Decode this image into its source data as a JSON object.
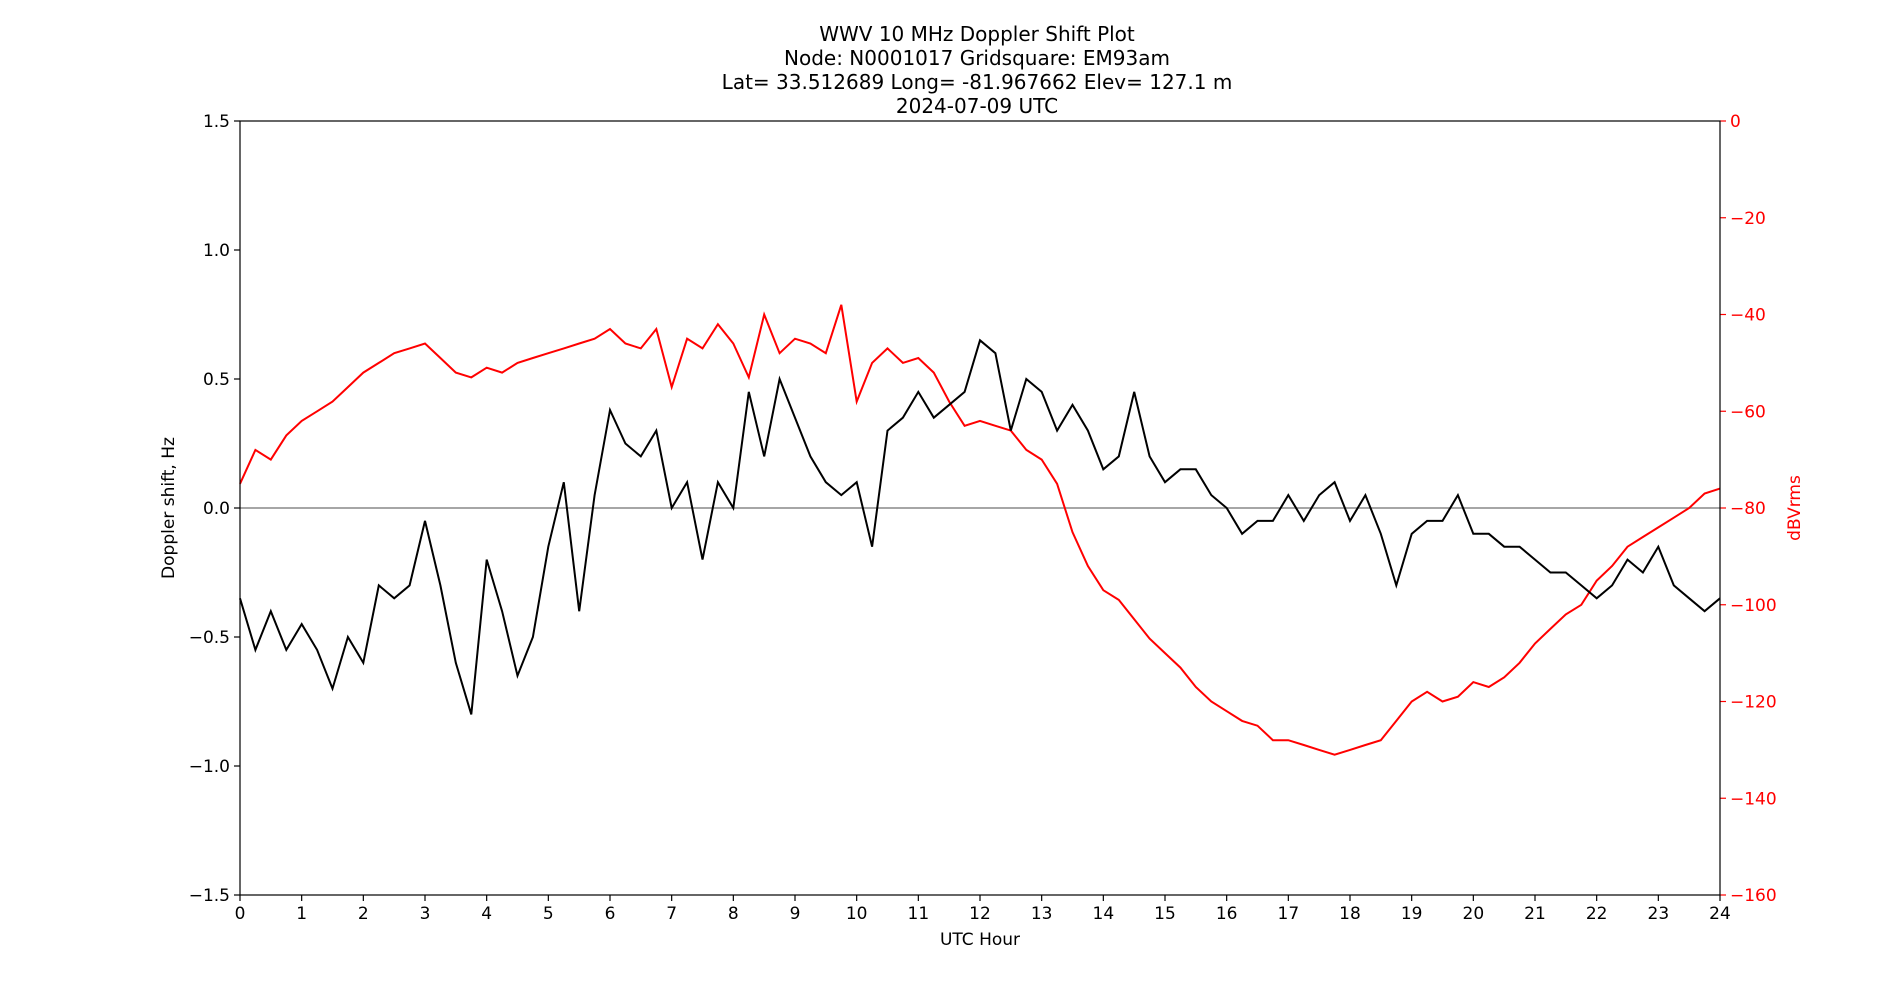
{
  "chart_data": {
    "type": "line",
    "title_lines": [
      "WWV 10 MHz Doppler Shift Plot",
      "Node:  N0001017      Gridsquare:  EM93am",
      "Lat= 33.512689     Long= -81.967662     Elev= 127.1 m",
      "2024-07-09  UTC"
    ],
    "xlabel": "UTC Hour",
    "ylabel_left": "Doppler shift, Hz",
    "ylabel_right": "dBVrms",
    "xlim": [
      0,
      24
    ],
    "ylim_left": [
      -1.5,
      1.5
    ],
    "ylim_right": [
      -160,
      0
    ],
    "xticks": [
      "0",
      "1",
      "2",
      "3",
      "4",
      "5",
      "6",
      "7",
      "8",
      "9",
      "10",
      "11",
      "12",
      "13",
      "14",
      "15",
      "16",
      "17",
      "18",
      "19",
      "20",
      "21",
      "22",
      "23",
      "24"
    ],
    "yticks_left": [
      "1.5",
      "1.0",
      "0.5",
      "0.0",
      "−0.5",
      "−1.0",
      "−1.5"
    ],
    "yticks_right": [
      "0",
      "−20",
      "−40",
      "−60",
      "−80",
      "−100",
      "−120",
      "−140",
      "−160"
    ],
    "zero_line": true,
    "grid": false,
    "colors": {
      "doppler": "#000000",
      "power": "#ff0000",
      "zero_line": "#888888",
      "right_axis": "#ff0000"
    },
    "series": [
      {
        "axis": "left",
        "x": [
          0,
          0.25,
          0.5,
          0.75,
          1,
          1.25,
          1.5,
          1.75,
          2,
          2.25,
          2.5,
          2.75,
          3,
          3.25,
          3.5,
          3.75,
          4,
          4.25,
          4.5,
          4.75,
          5,
          5.25,
          5.5,
          5.75,
          6,
          6.25,
          6.5,
          6.75,
          7,
          7.25,
          7.5,
          7.75,
          8,
          8.25,
          8.5,
          8.75,
          9,
          9.25,
          9.5,
          9.75,
          10,
          10.25,
          10.5,
          10.75,
          11,
          11.25,
          11.5,
          11.75,
          12,
          12.25,
          12.5,
          12.75,
          13,
          13.25,
          13.5,
          13.75,
          14,
          14.25,
          14.5,
          14.75,
          15,
          15.25,
          15.5,
          15.75,
          16,
          16.25,
          16.5,
          16.75,
          17,
          17.25,
          17.5,
          17.75,
          18,
          18.25,
          18.5,
          18.75,
          19,
          19.25,
          19.5,
          19.75,
          20,
          20.25,
          20.5,
          20.75,
          21,
          21.25,
          21.5,
          21.75,
          22,
          22.25,
          22.5,
          22.75,
          23,
          23.25,
          23.5,
          23.75,
          24
        ],
        "y": [
          -0.35,
          -0.55,
          -0.4,
          -0.55,
          -0.45,
          -0.55,
          -0.7,
          -0.5,
          -0.6,
          -0.3,
          -0.35,
          -0.3,
          -0.05,
          -0.3,
          -0.6,
          -0.8,
          -0.2,
          -0.4,
          -0.65,
          -0.5,
          -0.15,
          0.1,
          -0.4,
          0.05,
          0.38,
          0.25,
          0.2,
          0.3,
          0.0,
          0.1,
          -0.2,
          0.1,
          0.0,
          0.45,
          0.2,
          0.5,
          0.35,
          0.2,
          0.1,
          0.05,
          0.1,
          -0.15,
          0.3,
          0.35,
          0.45,
          0.35,
          0.4,
          0.45,
          0.65,
          0.6,
          0.3,
          0.5,
          0.45,
          0.3,
          0.4,
          0.3,
          0.15,
          0.2,
          0.45,
          0.2,
          0.1,
          0.15,
          0.15,
          0.05,
          0.0,
          -0.1,
          -0.05,
          -0.05,
          0.05,
          -0.05,
          0.05,
          0.1,
          -0.05,
          0.05,
          -0.1,
          -0.3,
          -0.1,
          -0.05,
          -0.05,
          0.05,
          -0.1,
          -0.1,
          -0.15,
          -0.15,
          -0.2,
          -0.25,
          -0.25,
          -0.3,
          -0.35,
          -0.3,
          -0.2,
          -0.25,
          -0.15,
          -0.3,
          -0.35,
          -0.4,
          -0.35
        ]
      },
      {
        "axis": "right",
        "x": [
          0,
          0.25,
          0.5,
          0.75,
          1,
          1.25,
          1.5,
          1.75,
          2,
          2.25,
          2.5,
          2.75,
          3,
          3.25,
          3.5,
          3.75,
          4,
          4.25,
          4.5,
          4.75,
          5,
          5.25,
          5.5,
          5.75,
          6,
          6.25,
          6.5,
          6.75,
          7,
          7.25,
          7.5,
          7.75,
          8,
          8.25,
          8.5,
          8.75,
          9,
          9.25,
          9.5,
          9.75,
          10,
          10.25,
          10.5,
          10.75,
          11,
          11.25,
          11.5,
          11.75,
          12,
          12.25,
          12.5,
          12.75,
          13,
          13.25,
          13.5,
          13.75,
          14,
          14.25,
          14.5,
          14.75,
          15,
          15.25,
          15.5,
          15.75,
          16,
          16.25,
          16.5,
          16.75,
          17,
          17.25,
          17.5,
          17.75,
          18,
          18.25,
          18.5,
          18.75,
          19,
          19.25,
          19.5,
          19.75,
          20,
          20.25,
          20.5,
          20.75,
          21,
          21.25,
          21.5,
          21.75,
          22,
          22.25,
          22.5,
          22.75,
          23,
          23.25,
          23.5,
          23.75,
          24
        ],
        "y": [
          -75,
          -68,
          -70,
          -65,
          -62,
          -60,
          -58,
          -55,
          -52,
          -50,
          -48,
          -47,
          -46,
          -49,
          -52,
          -53,
          -51,
          -52,
          -50,
          -49,
          -48,
          -47,
          -46,
          -45,
          -43,
          -46,
          -47,
          -43,
          -55,
          -45,
          -47,
          -42,
          -46,
          -53,
          -40,
          -48,
          -45,
          -46,
          -48,
          -38,
          -58,
          -50,
          -47,
          -50,
          -49,
          -52,
          -58,
          -63,
          -62,
          -63,
          -64,
          -68,
          -70,
          -75,
          -85,
          -92,
          -97,
          -99,
          -103,
          -107,
          -110,
          -113,
          -117,
          -120,
          -122,
          -124,
          -125,
          -128,
          -128,
          -129,
          -130,
          -131,
          -130,
          -129,
          -128,
          -124,
          -120,
          -118,
          -120,
          -119,
          -116,
          -117,
          -115,
          -112,
          -108,
          -105,
          -102,
          -100,
          -95,
          -92,
          -88,
          -86,
          -84,
          -82,
          -80,
          -77,
          -76
        ]
      }
    ]
  }
}
